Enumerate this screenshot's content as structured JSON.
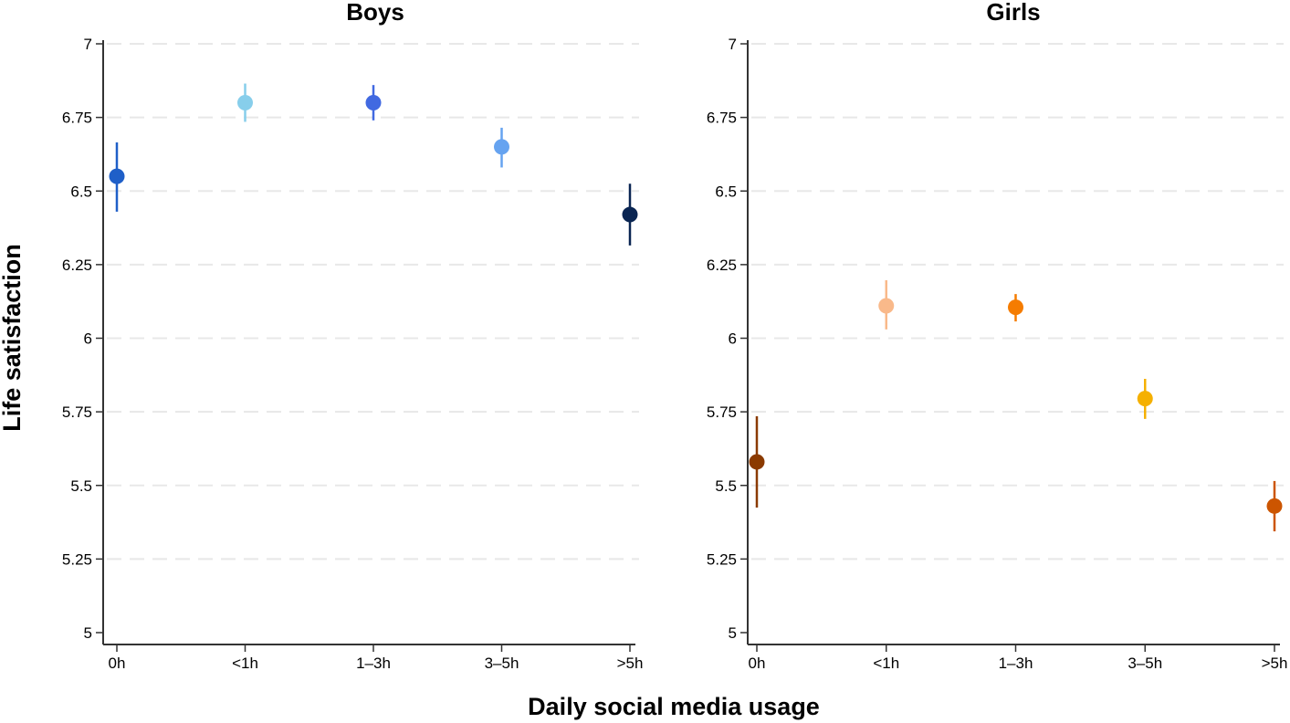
{
  "chart_data": {
    "type": "scatter",
    "subtype": "point-with-error-bars",
    "xlabel": "Daily social media usage",
    "ylabel": "Life satisfaction",
    "categories": [
      "0h",
      "<1h",
      "1–3h",
      "3–5h",
      ">5h"
    ],
    "ylim": [
      5,
      7
    ],
    "yticks": [
      5,
      5.25,
      5.5,
      5.75,
      6,
      6.25,
      6.5,
      6.75,
      7
    ],
    "ytick_labels": [
      "5",
      "5.25",
      "5.5",
      "5.75",
      "6",
      "6.25",
      "6.5",
      "6.75",
      "7"
    ],
    "grid": "horizontal dashed",
    "legend": "none",
    "panels": [
      {
        "title": "Boys",
        "points": [
          {
            "category": "0h",
            "value": 6.55,
            "ci_low": 6.43,
            "ci_high": 6.665,
            "color": "#1f5fc8"
          },
          {
            "category": "<1h",
            "value": 6.8,
            "ci_low": 6.735,
            "ci_high": 6.865,
            "color": "#87ceeb"
          },
          {
            "category": "1–3h",
            "value": 6.8,
            "ci_low": 6.74,
            "ci_high": 6.86,
            "color": "#4169e1"
          },
          {
            "category": "3–5h",
            "value": 6.65,
            "ci_low": 6.58,
            "ci_high": 6.715,
            "color": "#66a3f0"
          },
          {
            "category": ">5h",
            "value": 6.42,
            "ci_low": 6.315,
            "ci_high": 6.525,
            "color": "#0a2552"
          }
        ]
      },
      {
        "title": "Girls",
        "points": [
          {
            "category": "0h",
            "value": 5.58,
            "ci_low": 5.425,
            "ci_high": 5.735,
            "color": "#8b3a00"
          },
          {
            "category": "<1h",
            "value": 6.11,
            "ci_low": 6.03,
            "ci_high": 6.197,
            "color": "#f9b98a"
          },
          {
            "category": "1–3h",
            "value": 6.105,
            "ci_low": 6.057,
            "ci_high": 6.15,
            "color": "#f57c00"
          },
          {
            "category": "3–5h",
            "value": 5.795,
            "ci_low": 5.726,
            "ci_high": 5.862,
            "color": "#f5b000"
          },
          {
            "category": ">5h",
            "value": 5.43,
            "ci_low": 5.344,
            "ci_high": 5.515,
            "color": "#cc5500"
          }
        ]
      }
    ]
  }
}
